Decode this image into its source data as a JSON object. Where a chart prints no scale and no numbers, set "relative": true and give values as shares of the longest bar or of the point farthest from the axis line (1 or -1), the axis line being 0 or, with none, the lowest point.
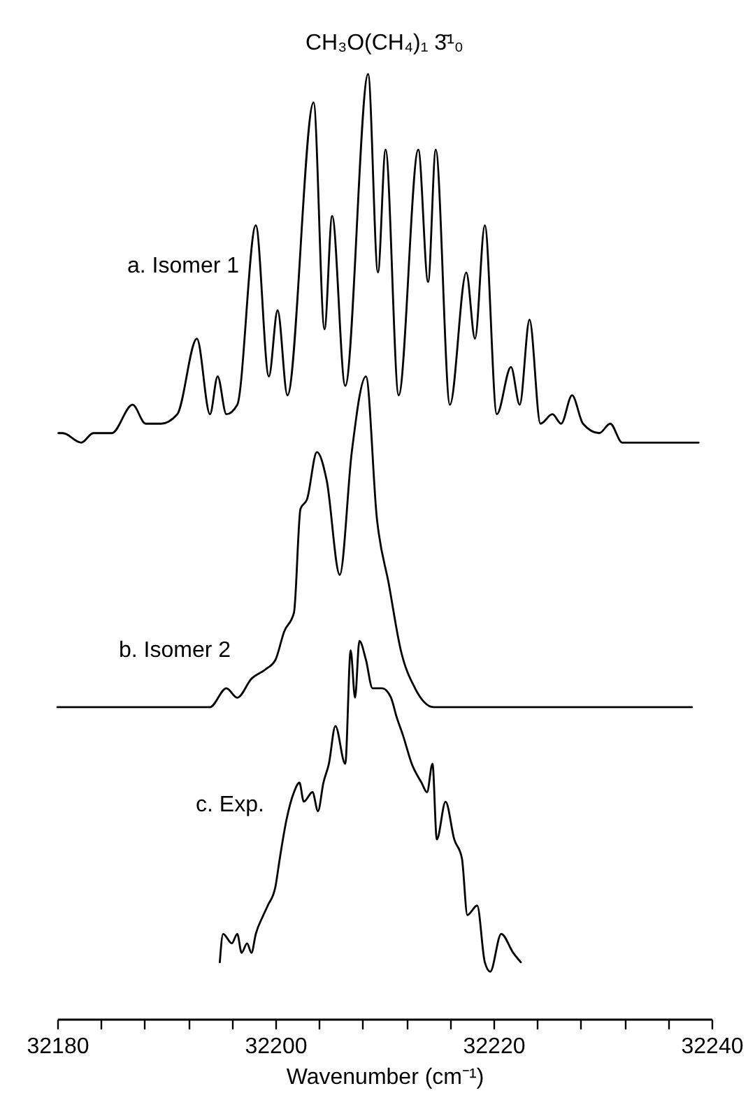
{
  "chart_data": {
    "type": "line",
    "title": "CH₃O(CH₄)₁ 3̄¹₀",
    "xlabel": "Wavenumber (cm⁻¹)",
    "relative": true,
    "xlim": [
      32180,
      32240
    ],
    "xticks": [
      32180,
      {
        "value": 32184,
        "label": null
      },
      {
        "value": 32188,
        "label": null
      },
      {
        "value": 32192,
        "label": null
      },
      {
        "value": 32196,
        "label": null
      },
      32200,
      {
        "value": 32204,
        "label": null
      },
      {
        "value": 32208,
        "label": null
      },
      {
        "value": 32212,
        "label": null
      },
      {
        "value": 32216,
        "label": null
      },
      32220,
      {
        "value": 32224,
        "label": null
      },
      {
        "value": 32228,
        "label": null
      },
      {
        "value": 32232,
        "label": null
      },
      {
        "value": 32236,
        "label": null
      },
      32240
    ],
    "grid": false,
    "marker": "none",
    "line_style": "solid",
    "series": [
      {
        "name": "a. Isomer 1",
        "color": "#000000",
        "x": [
          32180.1,
          32180.5,
          32182.2,
          32183.3,
          32185.0,
          32186.9,
          32188.1,
          32188.8,
          32189.5,
          32191.0,
          32192.8,
          32194.0,
          32194.7,
          32195.5,
          32196.5,
          32198.2,
          32199.4,
          32200.2,
          32201.1,
          32203.5,
          32204.5,
          32205.2,
          32206.4,
          32208.5,
          32209.4,
          32210.1,
          32211.3,
          32213.1,
          32214.0,
          32214.7,
          32216.0,
          32217.5,
          32218.3,
          32219.2,
          32220.3,
          32221.6,
          32222.4,
          32223.3,
          32224.3,
          32225.4,
          32226.2,
          32227.2,
          32228.2,
          32229.7,
          32230.7,
          32231.8,
          32234.1,
          32235.4,
          32238.8
        ],
        "values": [
          0.62,
          0.62,
          0.61,
          0.62,
          0.62,
          0.65,
          0.63,
          0.63,
          0.63,
          0.64,
          0.72,
          0.64,
          0.68,
          0.64,
          0.65,
          0.84,
          0.68,
          0.75,
          0.66,
          0.97,
          0.73,
          0.85,
          0.67,
          1,
          0.79,
          0.92,
          0.66,
          0.92,
          0.78,
          0.92,
          0.65,
          0.79,
          0.72,
          0.84,
          0.64,
          0.69,
          0.65,
          0.74,
          0.63,
          0.64,
          0.63,
          0.66,
          0.63,
          0.62,
          0.63,
          0.61,
          0.61,
          0.61,
          0.61
        ]
      },
      {
        "name": "b. Isomer 2",
        "color": "#000000",
        "x": [
          32180.0,
          32185.0,
          32189.3,
          32191.0,
          32192.3,
          32194.0,
          32195.5,
          32196.5,
          32197.8,
          32199.1,
          32200.0,
          32200.8,
          32201.7,
          32202.3,
          32202.9,
          32203.8,
          32204.7,
          32205.9,
          32207.0,
          32208.3,
          32209.3,
          32210.4,
          32211.5,
          32212.8,
          32214.5,
          32221.3,
          32238.2
        ],
        "values": [
          0.33,
          0.33,
          0.33,
          0.33,
          0.33,
          0.33,
          0.35,
          0.34,
          0.36,
          0.37,
          0.38,
          0.41,
          0.43,
          0.54,
          0.55,
          0.6,
          0.57,
          0.47,
          0.6,
          0.68,
          0.53,
          0.46,
          0.39,
          0.35,
          0.33,
          0.33,
          0.33
        ]
      },
      {
        "name": "c. Exp.",
        "color": "#000000",
        "x": [
          32194.9,
          32195.2,
          32196.0,
          32196.5,
          32196.9,
          32197.4,
          32197.8,
          32198.2,
          32198.9,
          32199.3,
          32200.0,
          32200.4,
          32201.0,
          32201.7,
          32202.2,
          32202.6,
          32203.4,
          32203.9,
          32204.4,
          32204.9,
          32205.5,
          32206.4,
          32206.9,
          32207.3,
          32207.7,
          32208.3,
          32208.9,
          32209.8,
          32210.6,
          32211.1,
          32211.7,
          32212.5,
          32213.4,
          32213.9,
          32214.4,
          32214.8,
          32215.6,
          32216.4,
          32217.1,
          32217.6,
          32218.5,
          32219.2,
          32219.7,
          32220.7,
          32221.8,
          32222.5
        ],
        "values": [
          0.06,
          0.09,
          0.08,
          0.09,
          0.07,
          0.08,
          0.07,
          0.09,
          0.11,
          0.12,
          0.14,
          0.17,
          0.21,
          0.24,
          0.25,
          0.23,
          0.24,
          0.22,
          0.25,
          0.27,
          0.31,
          0.27,
          0.39,
          0.34,
          0.4,
          0.38,
          0.35,
          0.35,
          0.34,
          0.32,
          0.3,
          0.27,
          0.25,
          0.24,
          0.27,
          0.19,
          0.23,
          0.19,
          0.17,
          0.11,
          0.12,
          0.06,
          0.05,
          0.09,
          0.07,
          0.06
        ]
      }
    ]
  }
}
